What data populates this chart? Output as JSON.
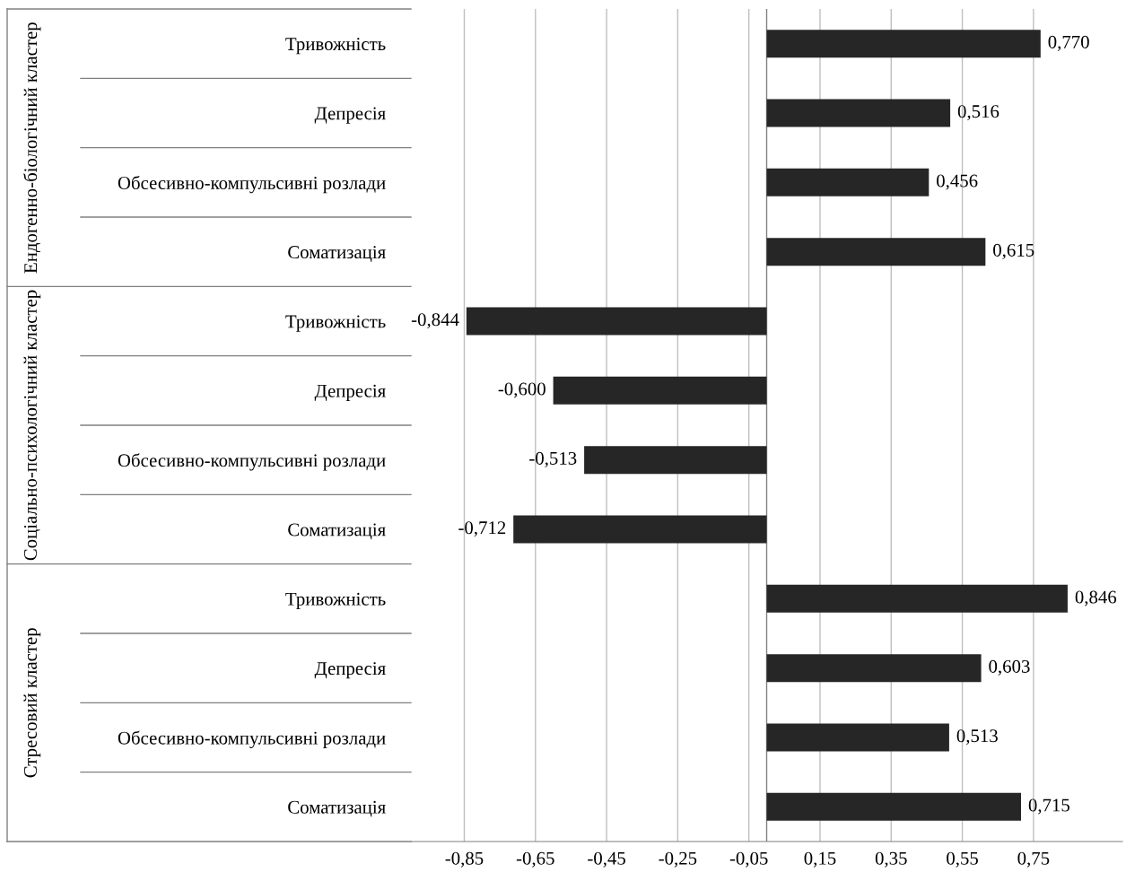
{
  "chart_data": {
    "type": "bar",
    "orientation": "horizontal",
    "categories": [
      "Тривожність",
      "Депресія",
      "Обсесивно-компульсивні розлади",
      "Соматизація",
      "Тривожність",
      "Депресія",
      "Обсесивно-компульсивні розлади",
      "Соматизація",
      "Тривожність",
      "Депресія",
      "Обсесивно-компульсивні розлади",
      "Соматизація"
    ],
    "values": [
      0.77,
      0.516,
      0.456,
      0.615,
      -0.844,
      -0.6,
      -0.513,
      -0.712,
      0.846,
      0.603,
      0.513,
      0.715
    ],
    "value_labels": [
      "0,770",
      "0,516",
      "0,456",
      "0,615",
      "-0,844",
      "-0,600",
      "-0,513",
      "-0,712",
      "0,846",
      "0,603",
      "0,513",
      "0,715"
    ],
    "color": "#262626",
    "annotations": [
      "Ендогенно-біологічний кластер",
      "Соціально-психологічний кластер",
      "Стресовий кластер"
    ],
    "xlim": [
      -1.0,
      1.0
    ],
    "xticks": [
      {
        "value": -0.85,
        "label": "-0,85"
      },
      {
        "value": -0.65,
        "label": "-0,65"
      },
      {
        "value": -0.45,
        "label": "-0,45"
      },
      {
        "value": -0.25,
        "label": "-0,25"
      },
      {
        "value": -0.05,
        "label": "-0,05"
      },
      {
        "value": 0.15,
        "label": "0,15"
      },
      {
        "value": 0.35,
        "label": "0,35"
      },
      {
        "value": 0.55,
        "label": "0,55"
      },
      {
        "value": 0.75,
        "label": "0,75"
      }
    ],
    "grid": "x",
    "legend": false
  }
}
